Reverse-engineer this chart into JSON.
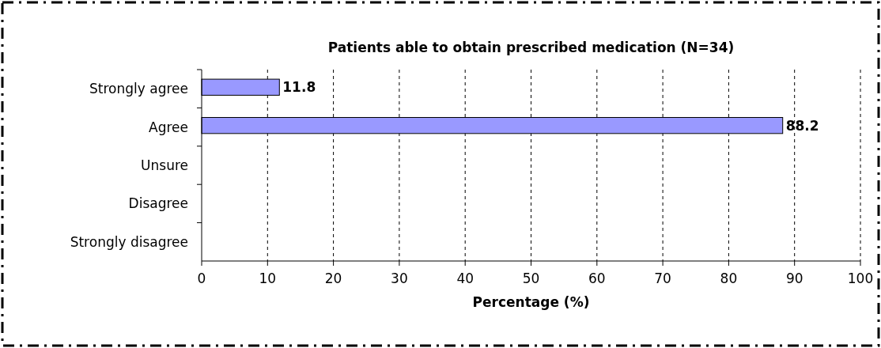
{
  "chart_data": {
    "type": "bar",
    "orientation": "horizontal",
    "title": "Patients able to obtain prescribed medication (N=34)",
    "xlabel": "Percentage (%)",
    "categories": [
      "Strongly agree",
      "Agree",
      "Unsure",
      "Disagree",
      "Strongly disagree"
    ],
    "values": [
      11.8,
      88.2,
      0,
      0,
      0
    ],
    "value_labels": [
      "11.8",
      "88.2",
      null,
      null,
      null
    ],
    "color": "#9999ff",
    "xlim": [
      0,
      100
    ],
    "xticks": [
      0,
      10,
      20,
      30,
      40,
      50,
      60,
      70,
      80,
      90,
      100
    ],
    "grid": "x"
  }
}
